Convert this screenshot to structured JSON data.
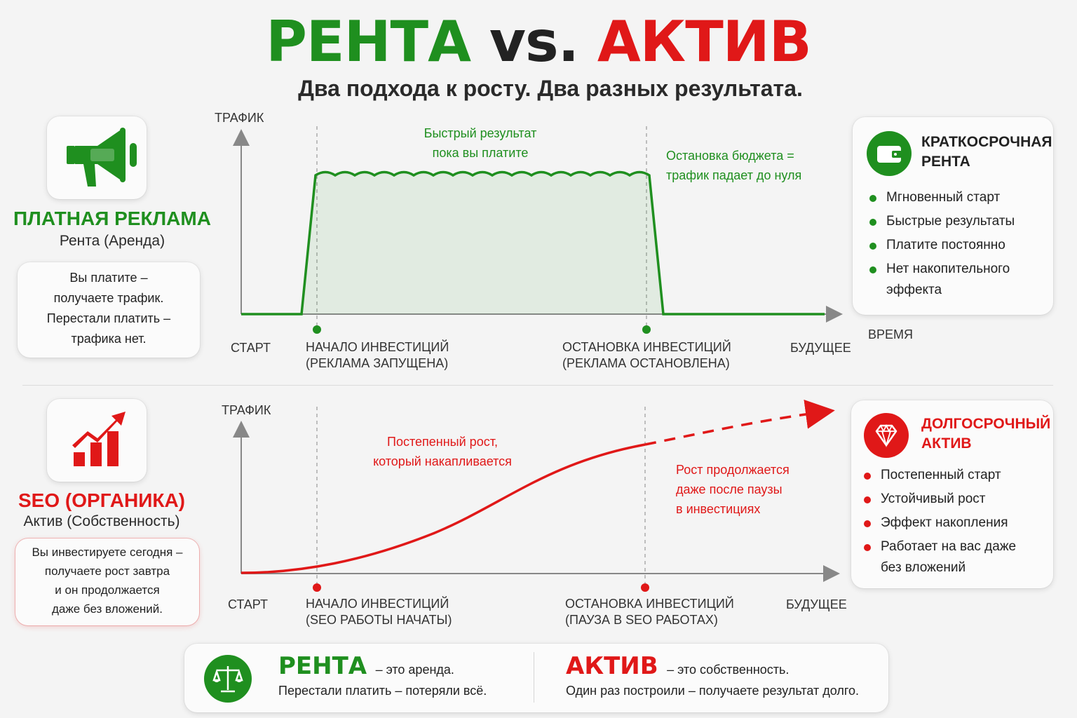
{
  "header": {
    "title_left": "РЕНТА",
    "title_mid": "vs.",
    "title_right": "АКТИВ",
    "subtitle": "Два подхода к росту. Два разных результата."
  },
  "colors": {
    "green": "#1f8f1f",
    "red": "#e01818"
  },
  "paid": {
    "icon": "megaphone-icon",
    "title": "ПЛАТНАЯ РЕКЛАМА",
    "subtitle": "Рента (Аренда)",
    "desc": [
      "Вы платите –",
      "получаете трафик.",
      "Перестали платить –",
      "трафика нет."
    ],
    "chart": {
      "y_label": "ТРАФИК",
      "x_label": "ВРЕМЯ",
      "annotation_top": [
        "Быстрый результат",
        "пока вы платите"
      ],
      "annotation_right": [
        "Остановка бюджета =",
        "трафик падает до нуля"
      ],
      "tick_start": "СТАРТ",
      "tick_invest": [
        "НАЧАЛО ИНВЕСТИЦИЙ",
        "(РЕКЛАМА ЗАПУЩЕНА)"
      ],
      "tick_stop": [
        "ОСТАНОВКА ИНВЕСТИЦИЙ",
        "(РЕКЛАМА ОСТАНОВЛЕНА)"
      ],
      "tick_future": "БУДУЩЕЕ"
    },
    "info": {
      "icon": "wallet-icon",
      "title": [
        "КРАТКОСРОЧНАЯ",
        "РЕНТА"
      ],
      "items": [
        "Мгновенный старт",
        "Быстрые результаты",
        "Платите постоянно",
        "Нет накопительного эффекта"
      ]
    }
  },
  "seo": {
    "icon": "growth-chart-icon",
    "title": "SEO (ОРГАНИКА)",
    "subtitle": "Актив (Собственность)",
    "desc": [
      "Вы инвестируете сегодня –",
      "получаете рост завтра",
      "и он продолжается",
      "даже без вложений."
    ],
    "chart": {
      "y_label": "ТРАФИК",
      "annotation_mid": [
        "Постепенный рост,",
        "который накапливается"
      ],
      "annotation_right": [
        "Рост продолжается",
        "даже после паузы",
        "в инвестициях"
      ],
      "tick_start": "СТАРТ",
      "tick_invest": [
        "НАЧАЛО ИНВЕСТИЦИЙ",
        "(SEO РАБОТЫ НАЧАТЫ)"
      ],
      "tick_stop": [
        "ОСТАНОВКА ИНВЕСТИЦИЙ",
        "(ПАУЗА В SEO РАБОТАХ)"
      ],
      "tick_future": "БУДУЩЕЕ"
    },
    "info": {
      "icon": "diamond-icon",
      "title": [
        "ДОЛГОСРОЧНЫЙ",
        "АКТИВ"
      ],
      "items": [
        "Постепенный старт",
        "Устойчивый рост",
        "Эффект накопления",
        "Работает на вас даже без вложений"
      ]
    }
  },
  "bottom": {
    "icon": "scales-icon",
    "rent_word": "РЕНТА",
    "rent_def": "– это аренда.",
    "rent_line": "Перестали платить – потеряли всё.",
    "asset_word": "АКТИВ",
    "asset_def": "– это собственность.",
    "asset_line": "Один раз построили – получаете результат долго."
  }
}
